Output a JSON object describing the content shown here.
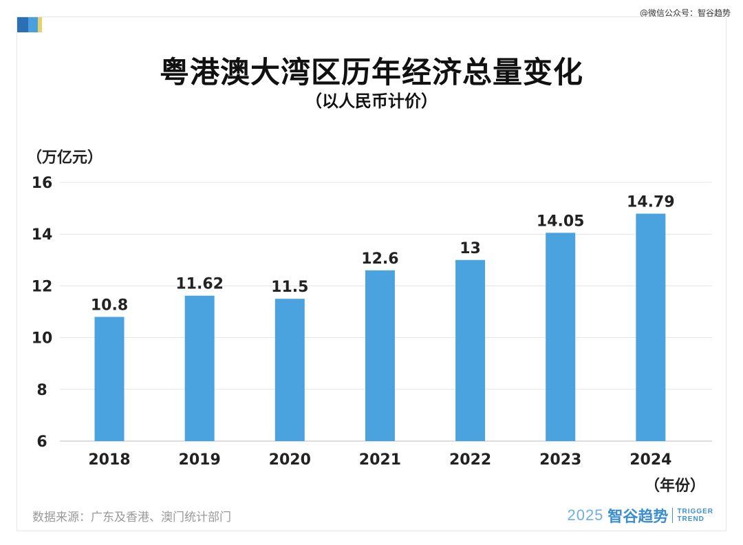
{
  "watermark": "@微信公众号：智谷趋势",
  "colors": {
    "bar": "#4aa3df",
    "grid": "#e3e3e3",
    "axis": "#bbbbbb",
    "text": "#222222",
    "brand": "#3b8fd0"
  },
  "footer": {
    "source": "数据来源：广东及香港、澳门统计部门",
    "brand_year": "2025",
    "brand_name": "智谷趋势",
    "brand_en_1": "TRIGGER",
    "brand_en_2": "TREND"
  },
  "chart_data": {
    "type": "bar",
    "title": "粤港澳大湾区历年经济总量变化",
    "subtitle": "（以人民币计价）",
    "ylabel": "（万亿元）",
    "xlabel": "（年份）",
    "categories": [
      "2018",
      "2019",
      "2020",
      "2021",
      "2022",
      "2023",
      "2024"
    ],
    "values": [
      10.8,
      11.62,
      11.5,
      12.6,
      13,
      14.05,
      14.79
    ],
    "value_labels": [
      "10.8",
      "11.62",
      "11.5",
      "12.6",
      "13",
      "14.05",
      "14.79"
    ],
    "ylim": [
      6,
      16
    ],
    "yticks": [
      6,
      8,
      10,
      12,
      14,
      16
    ],
    "grid": true
  }
}
